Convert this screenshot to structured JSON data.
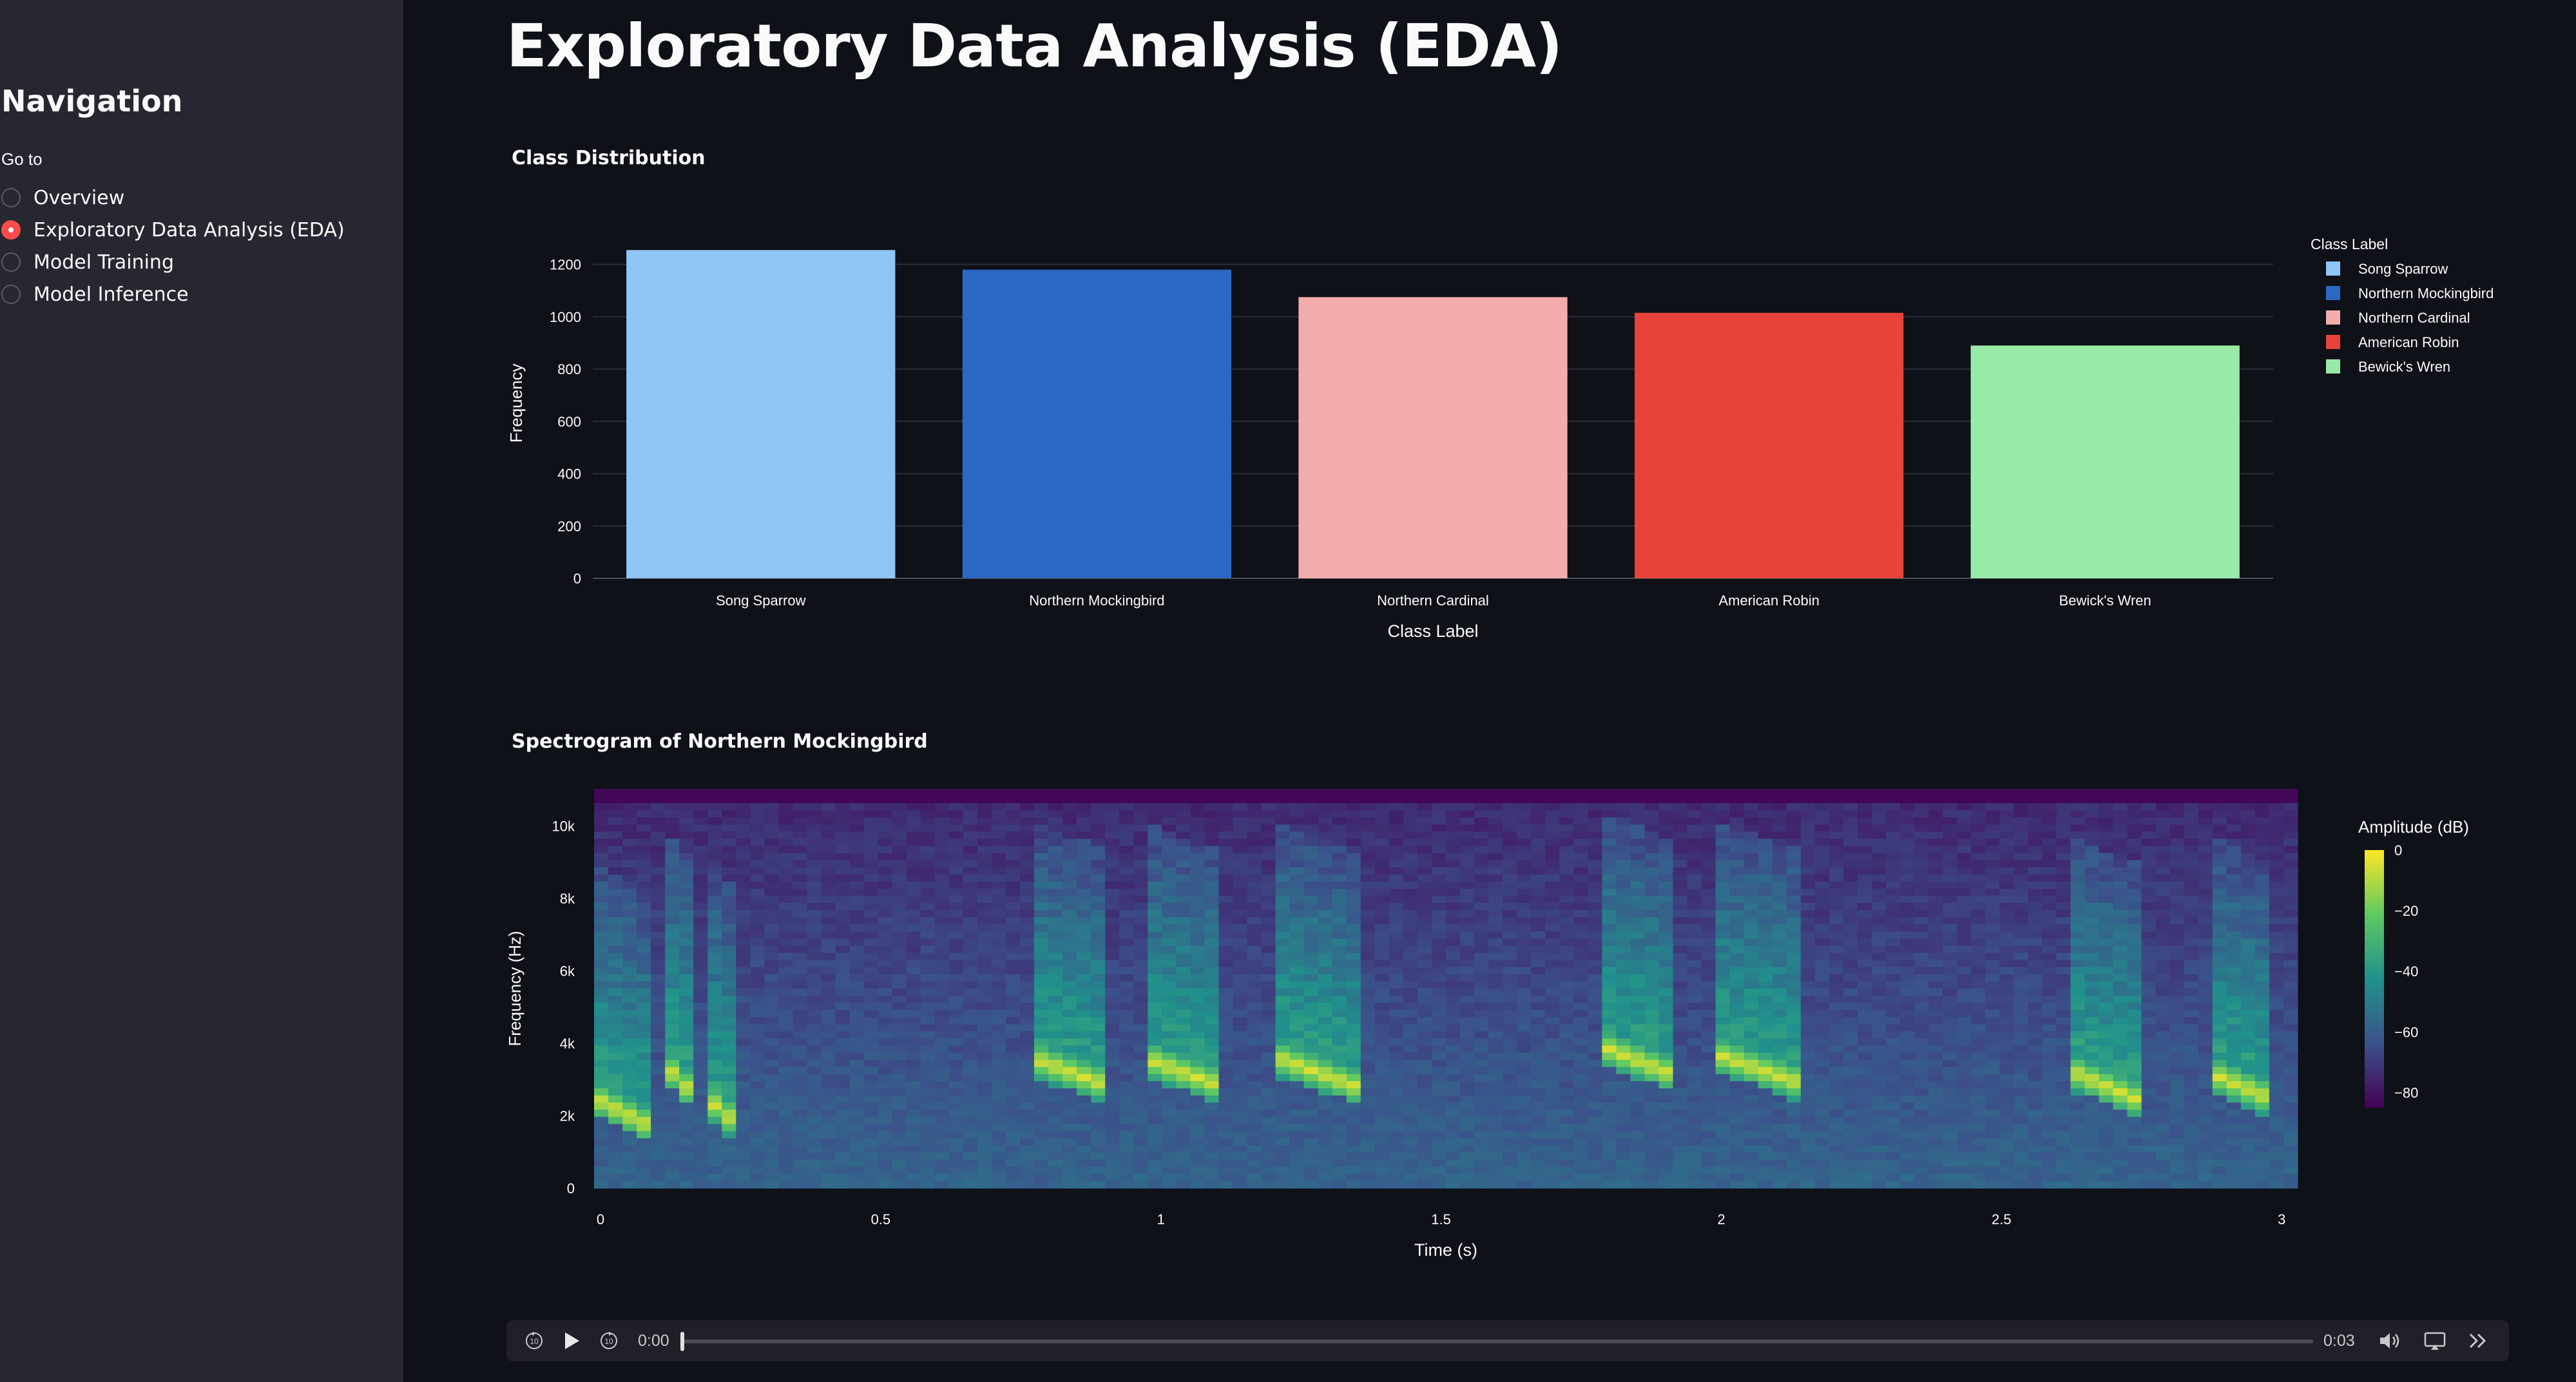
{
  "sidebar": {
    "title": "Navigation",
    "goto_label": "Go to",
    "items": [
      {
        "label": "Overview",
        "checked": false
      },
      {
        "label": "Exploratory Data Analysis (EDA)",
        "checked": true
      },
      {
        "label": "Model Training",
        "checked": false
      },
      {
        "label": "Model Inference",
        "checked": false
      }
    ]
  },
  "main": {
    "title": "Exploratory Data Analysis (EDA)",
    "class_dist_title": "Class Distribution",
    "spectrogram_title": "Spectrogram of Northern Mockingbird"
  },
  "chart_data": [
    {
      "type": "bar",
      "title": "Class Distribution",
      "categories": [
        "Song Sparrow",
        "Northern Mockingbird",
        "Northern Cardinal",
        "American Robin",
        "Bewick's Wren"
      ],
      "values": [
        1255,
        1180,
        1075,
        1015,
        890
      ],
      "colors": [
        "#90c5f7",
        "#2c67c3",
        "#f2acac",
        "#e8433b",
        "#99e9a7"
      ],
      "xlabel": "Class Label",
      "ylabel": "Frequency",
      "ylim": [
        0,
        1300
      ],
      "yticks": [
        0,
        200,
        400,
        600,
        800,
        1000,
        1200
      ],
      "legend_title": "Class Label",
      "legend": [
        "Song Sparrow",
        "Northern Mockingbird",
        "Northern Cardinal",
        "American Robin",
        "Bewick's Wren"
      ],
      "grid": true
    },
    {
      "type": "heatmap",
      "title": "Spectrogram of Northern Mockingbird",
      "xlabel": "Time (s)",
      "ylabel": "Frequency (Hz)",
      "xlim": [
        0,
        3.04
      ],
      "ylim": [
        0,
        11025
      ],
      "xticks": [
        {
          "v": 0,
          "label": "0"
        },
        {
          "v": 0.5,
          "label": "0.5"
        },
        {
          "v": 1,
          "label": "1"
        },
        {
          "v": 1.5,
          "label": "1.5"
        },
        {
          "v": 2,
          "label": "2"
        },
        {
          "v": 2.5,
          "label": "2.5"
        },
        {
          "v": 3,
          "label": "3"
        }
      ],
      "yticks": [
        {
          "v": 0,
          "label": "0"
        },
        {
          "v": 2000,
          "label": "2k"
        },
        {
          "v": 4000,
          "label": "4k"
        },
        {
          "v": 6000,
          "label": "6k"
        },
        {
          "v": 8000,
          "label": "8k"
        },
        {
          "v": 10000,
          "label": "10k"
        }
      ],
      "colorbar_title": "Amplitude (dB)",
      "colorbar_range": [
        -85,
        0
      ],
      "colorbar_ticks": [
        {
          "v": 0,
          "label": "0"
        },
        {
          "v": -20,
          "label": "−20"
        },
        {
          "v": -40,
          "label": "−40"
        },
        {
          "v": -60,
          "label": "−60"
        },
        {
          "v": -80,
          "label": "−80"
        }
      ],
      "bursts": [
        {
          "t": 0.0,
          "f": 2500,
          "dur": 0.1
        },
        {
          "t": 0.12,
          "f": 3500,
          "dur": 0.05
        },
        {
          "t": 0.2,
          "f": 2500,
          "dur": 0.06
        },
        {
          "t": 0.78,
          "f": 3600,
          "dur": 0.14
        },
        {
          "t": 0.98,
          "f": 3600,
          "dur": 0.14
        },
        {
          "t": 1.22,
          "f": 3600,
          "dur": 0.14
        },
        {
          "t": 1.8,
          "f": 3900,
          "dur": 0.13
        },
        {
          "t": 2.0,
          "f": 3700,
          "dur": 0.15
        },
        {
          "t": 2.64,
          "f": 3200,
          "dur": 0.12
        },
        {
          "t": 2.88,
          "f": 3200,
          "dur": 0.12
        }
      ],
      "colorscale": [
        "#440154",
        "#3b528b",
        "#21918c",
        "#5ec962",
        "#fde725"
      ]
    }
  ],
  "audio": {
    "current_time": "0:00",
    "duration": "0:03",
    "progress": 0.0,
    "rewind_icon": "rewind-10-icon",
    "play_icon": "play-icon",
    "forward_icon": "forward-10-icon",
    "volume_icon": "volume-icon",
    "airplay_icon": "airplay-icon",
    "more_icon": "more-icon"
  }
}
